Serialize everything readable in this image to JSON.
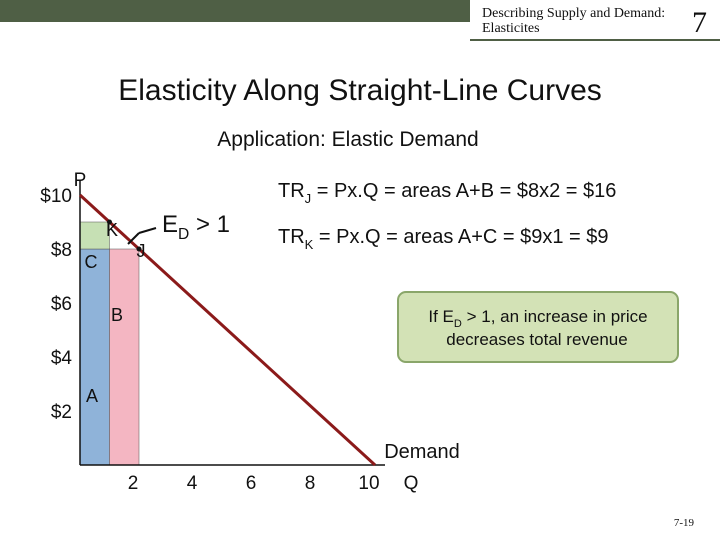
{
  "header": {
    "title_lines": [
      "Describing Supply and Demand:",
      "Elasticites"
    ],
    "chapter": "7"
  },
  "title": "Elasticity Along Straight-Line Curves",
  "subtitle": "Application: Elastic Demand",
  "chart_data": {
    "type": "line",
    "x": [
      0,
      10
    ],
    "values": [
      10,
      0
    ],
    "color": "#8b1a1a",
    "xlabel": "Q",
    "ylabel": "P",
    "series_label": "Demand",
    "xlim": [
      0,
      10
    ],
    "ylim": [
      0,
      10
    ],
    "xticks": [
      2,
      4,
      6,
      8,
      10
    ],
    "yticks": [
      {
        "value": 2,
        "label": "$2"
      },
      {
        "value": 4,
        "label": "$4"
      },
      {
        "value": 6,
        "label": "$6"
      },
      {
        "value": 8,
        "label": "$8"
      },
      {
        "value": 10,
        "label": "$10"
      }
    ],
    "points": [
      {
        "label": "K",
        "x": 1,
        "y": 9
      },
      {
        "label": "J",
        "x": 2,
        "y": 8
      }
    ],
    "areas": [
      {
        "label": "A",
        "x": [
          0,
          1
        ],
        "y": [
          0,
          8
        ],
        "color": "#8fb3d9"
      },
      {
        "label": "C",
        "x": [
          0,
          1
        ],
        "y": [
          8,
          9
        ],
        "color": "#c6e0b4"
      },
      {
        "label": "B",
        "x": [
          1,
          2
        ],
        "y": [
          0,
          8
        ],
        "color": "#f4b6c2"
      }
    ]
  },
  "annotations": {
    "elasticity": [
      "E",
      "D",
      " > 1"
    ],
    "tr_j": [
      "TR",
      "J",
      " = Px.Q = areas A+B = $8x2 = $16"
    ],
    "tr_k": [
      "TR",
      "K",
      " = Px.Q = areas A+C = $9x1 = $9"
    ],
    "note_line1": [
      "If E",
      "D",
      " > 1, an increase in price"
    ],
    "note_line2": "decreases total revenue"
  },
  "page_number": "7-19"
}
